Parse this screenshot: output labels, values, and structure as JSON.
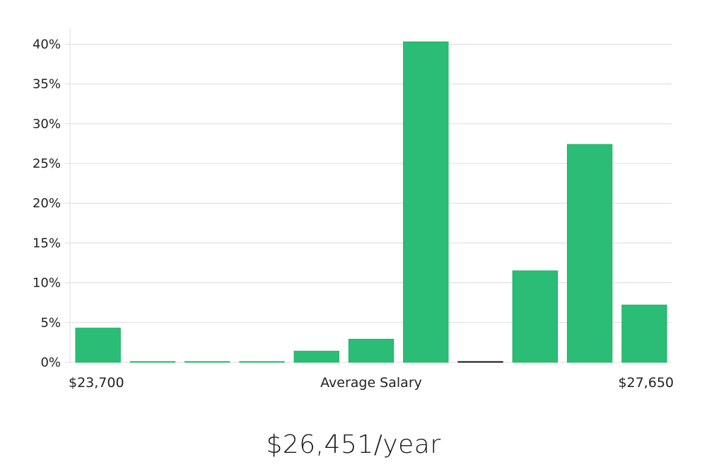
{
  "chart_data": {
    "type": "bar",
    "title": "",
    "xlabel": "Average Salary",
    "ylabel": "",
    "x_start_label": "$23,700",
    "x_end_label": "$27,650",
    "ylim": [
      0,
      42
    ],
    "yticks": [
      0,
      5,
      10,
      15,
      20,
      25,
      30,
      35,
      40
    ],
    "ytick_labels": [
      "0%",
      "5%",
      "10%",
      "15%",
      "20%",
      "25%",
      "30%",
      "35%",
      "40%"
    ],
    "grid": true,
    "bar_color": "#2bbd76",
    "bar_edge_color": "#22b06a",
    "highlight_color": "#111111",
    "values": [
      4.3,
      0,
      0,
      0,
      1.4,
      2.9,
      40.3,
      0,
      11.5,
      27.4,
      7.2
    ],
    "highlight_index": 7
  },
  "summary": {
    "salary_text": "$26,451/year"
  }
}
